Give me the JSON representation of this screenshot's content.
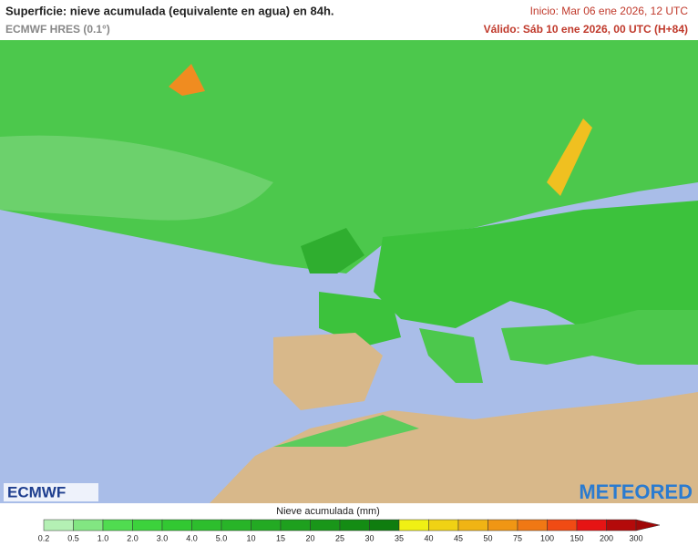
{
  "header": {
    "title": "Superficie: nieve acumulada (equivalente en agua) en 84h.",
    "model": "ECMWF HRES (0.1°)",
    "init": "Inicio: Mar 06 ene 2026, 12 UTC",
    "valid": "Válido: Sáb 10 ene 2026, 00 UTC (H+84)"
  },
  "logos": {
    "left": "ECMWF",
    "right": "METEORED"
  },
  "legend": {
    "label": "Nieve acumulada (mm)",
    "ticks": [
      "0.2",
      "0.5",
      "1.0",
      "2.0",
      "3.0",
      "4.0",
      "5.0",
      "10",
      "15",
      "20",
      "25",
      "30",
      "35",
      "40",
      "45",
      "50",
      "75",
      "100",
      "150",
      "200",
      "300"
    ],
    "colors": [
      "#b4f0b4",
      "#82e682",
      "#50dc50",
      "#3cd23c",
      "#32c832",
      "#2dbe2d",
      "#28b428",
      "#23aa23",
      "#1ea01e",
      "#199619",
      "#148c14",
      "#0f7d0f",
      "#f0f014",
      "#f0d214",
      "#f0b414",
      "#f09614",
      "#f07814",
      "#f04b14",
      "#e61414",
      "#b40a0a"
    ],
    "arrow_color": "#a00808"
  }
}
